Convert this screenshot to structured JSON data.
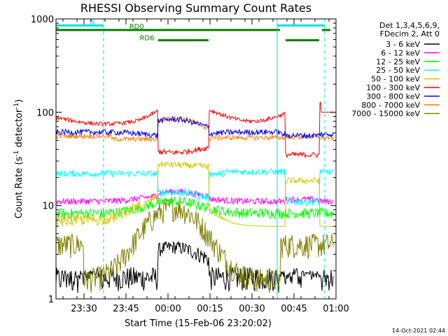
{
  "chart_data": {
    "type": "line",
    "title": "RHESSI Observing Summary Count Rates",
    "xlabel": "Start Time (15-Feb-06 23:20:02)",
    "ylabel": "Count Rate (s",
    "ylabel_sup": "-1",
    "ylabel_tail": " detector",
    "ylabel_close": ")",
    "y_scale": "log",
    "ylim": [
      1,
      1000
    ],
    "xlim_minutes": [
      0,
      100
    ],
    "x_ticks": [
      {
        "min": 10,
        "label": "23:30"
      },
      {
        "min": 25,
        "label": "23:45"
      },
      {
        "min": 40,
        "label": "00:00"
      },
      {
        "min": 55,
        "label": "00:15"
      },
      {
        "min": 70,
        "label": "00:30"
      },
      {
        "min": 85,
        "label": "00:45"
      },
      {
        "min": 100,
        "label": "01:00"
      }
    ],
    "y_ticks": [
      {
        "value": 1,
        "label": "1"
      },
      {
        "value": 10,
        "label": "10"
      },
      {
        "value": 100,
        "label": "100"
      },
      {
        "value": 1000,
        "label": "1000"
      }
    ],
    "legend_header": [
      "Det 1,3,4,5,6,9,",
      "FDecim 2, Att 0"
    ],
    "flags": [
      {
        "label": "N",
        "color": "#00e0e0",
        "segments": [
          [
            0,
            17
          ],
          [
            79,
            96
          ]
        ],
        "level": 850
      },
      {
        "label": "RD0",
        "color": "#008000",
        "segments": [
          [
            0,
            80
          ],
          [
            95,
            98
          ]
        ],
        "level": 760
      },
      {
        "label": "RD6",
        "color": "#008000",
        "segments": [
          [
            36.5,
            54.5
          ],
          [
            82,
            94
          ]
        ],
        "level": 590
      }
    ],
    "vlines": [
      {
        "min": 17,
        "style": "dashed"
      },
      {
        "min": 79,
        "style": "solid"
      },
      {
        "min": 96,
        "style": "dashed"
      }
    ],
    "series": [
      {
        "name": "3 - 6 keV",
        "color": "#000000"
      },
      {
        "name": "6 - 12 keV",
        "color": "#ff00ff"
      },
      {
        "name": "12 - 25 keV",
        "color": "#00ff00"
      },
      {
        "name": "25 - 50 keV",
        "color": "#00ffff"
      },
      {
        "name": "50 - 100 keV",
        "color": "#d4c800"
      },
      {
        "name": "100 - 300 keV",
        "color": "#ff0000"
      },
      {
        "name": "300 - 800 keV",
        "color": "#0000ff"
      },
      {
        "name": "800 - 7000 keV",
        "color": "#ff8000"
      },
      {
        "name": "7000 - 15000 keV",
        "color": "#808000"
      }
    ],
    "footer": "14-Oct-2021 02:44"
  }
}
